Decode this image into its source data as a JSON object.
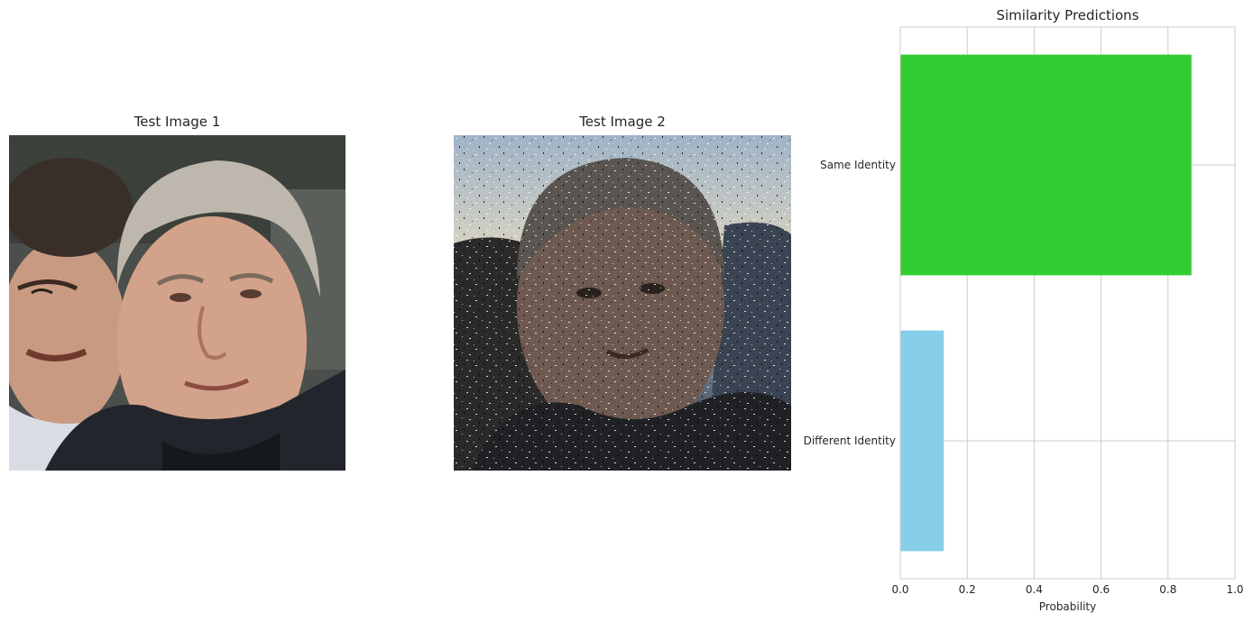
{
  "panels": [
    {
      "title": "Test Image 1"
    },
    {
      "title": "Test Image 2"
    }
  ],
  "chart_data": {
    "type": "bar",
    "orientation": "horizontal",
    "title": "Similarity Predictions",
    "xlabel": "Probability",
    "ylabel": "",
    "categories": [
      "Different Identity",
      "Same Identity"
    ],
    "values": [
      0.13,
      0.87
    ],
    "colors": [
      "#87CEEB",
      "#32CD32"
    ],
    "xlim": [
      0.0,
      1.0
    ],
    "xticks": [
      "0.0",
      "0.2",
      "0.4",
      "0.6",
      "0.8",
      "1.0"
    ],
    "grid": true
  }
}
